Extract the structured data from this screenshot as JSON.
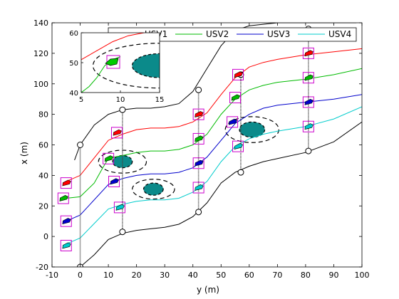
{
  "chart_data": {
    "type": "line",
    "xlabel": "y (m)",
    "ylabel": "x (m)",
    "xlim": [
      -10,
      100
    ],
    "ylim": [
      -20,
      140
    ],
    "xticks": [
      -10,
      0,
      10,
      20,
      30,
      40,
      50,
      60,
      70,
      80,
      90,
      100
    ],
    "yticks": [
      -20,
      0,
      20,
      40,
      60,
      80,
      100,
      120,
      140
    ],
    "grid": false,
    "legend_position": "top",
    "series": [
      {
        "name": "USV1",
        "color": "#ff0000",
        "x": [
          -5,
          0,
          10,
          15,
          20,
          25,
          30,
          35,
          40,
          45,
          50,
          55,
          60,
          65,
          70,
          80,
          90,
          100
        ],
        "y": [
          36,
          40,
          63,
          67,
          70,
          71,
          71,
          72,
          75,
          81,
          93,
          104,
          111,
          114,
          116,
          119,
          121,
          123
        ]
      },
      {
        "name": "USV2",
        "color": "#00bb00",
        "x": [
          -5,
          0,
          5,
          8,
          10,
          12,
          15,
          20,
          25,
          30,
          35,
          40,
          45,
          50,
          55,
          60,
          65,
          70,
          80,
          90,
          100
        ],
        "y": [
          25,
          26,
          35,
          45,
          51,
          52,
          53,
          55,
          56,
          56,
          57,
          60,
          67,
          80,
          90,
          96,
          99,
          101,
          103,
          106,
          110
        ]
      },
      {
        "name": "USV3",
        "color": "#0000cc",
        "x": [
          -5,
          0,
          10,
          15,
          20,
          25,
          30,
          35,
          40,
          45,
          50,
          55,
          60,
          65,
          70,
          80,
          90,
          100
        ],
        "y": [
          10,
          14,
          34,
          38,
          40,
          41,
          41,
          42,
          45,
          52,
          63,
          74,
          80,
          84,
          86,
          88,
          90,
          93
        ]
      },
      {
        "name": "USV4",
        "color": "#00cccc",
        "x": [
          -5,
          0,
          10,
          15,
          20,
          25,
          30,
          35,
          40,
          45,
          50,
          55,
          60,
          65,
          70,
          80,
          90,
          100
        ],
        "y": [
          -5,
          -1,
          18,
          21,
          23,
          24,
          24,
          25,
          29,
          36,
          49,
          59,
          64,
          67,
          69,
          72,
          77,
          85
        ]
      },
      {
        "name": "",
        "color": "#000000",
        "x": [
          -2,
          0,
          5,
          10,
          15,
          20,
          25,
          30,
          35,
          40,
          45,
          50,
          55,
          60,
          70,
          80,
          90,
          98
        ],
        "y": [
          50,
          60,
          73,
          80,
          83,
          84,
          84,
          85,
          87,
          95,
          110,
          125,
          135,
          138,
          140,
          140,
          140,
          140
        ]
      },
      {
        "name": "",
        "color": "#000000",
        "x": [
          0,
          5,
          10,
          15,
          20,
          25,
          30,
          35,
          40,
          45,
          50,
          55,
          60,
          65,
          70,
          80,
          90,
          100
        ],
        "y": [
          -20,
          -12,
          -2,
          2,
          4,
          5,
          6,
          8,
          13,
          22,
          35,
          42,
          46,
          49,
          51,
          55,
          62,
          75
        ]
      }
    ],
    "obstacles": [
      {
        "center": [
          15,
          49
        ],
        "rx": 3.5,
        "ry": 4,
        "safety_rx": 8.5,
        "safety_ry": 7.5
      },
      {
        "center": [
          26,
          31
        ],
        "rx": 3.5,
        "ry": 4,
        "safety_rx": 7.5,
        "safety_ry": 6.5
      },
      {
        "center": [
          61,
          70
        ],
        "rx": 4.5,
        "ry": 5,
        "safety_rx": 9.5,
        "safety_ry": 8.5
      }
    ],
    "snapshots": [
      {
        "y": 0,
        "top_x": 60,
        "bottom_x": -20,
        "boats": [
          [
            -5,
            35,
            "#ff0000"
          ],
          [
            -6,
            25,
            "#00bb00"
          ],
          [
            -5,
            10,
            "#0000cc"
          ],
          [
            -5,
            -6,
            "#00cccc"
          ]
        ]
      },
      {
        "y": 15,
        "top_x": 83,
        "bottom_x": 3,
        "boats": [
          [
            13,
            68,
            "#ff0000"
          ],
          [
            10,
            51,
            "#00bb00"
          ],
          [
            12,
            36,
            "#0000cc"
          ],
          [
            14,
            19,
            "#00cccc"
          ]
        ]
      },
      {
        "y": 42,
        "top_x": 96,
        "bottom_x": 16,
        "boats": [
          [
            42,
            80,
            "#ff0000"
          ],
          [
            42,
            64,
            "#00bb00"
          ],
          [
            42,
            48,
            "#0000cc"
          ],
          [
            42,
            32,
            "#00cccc"
          ]
        ]
      },
      {
        "y": 57,
        "top_x": 106,
        "bottom_x": 42,
        "boats": [
          [
            56,
            106,
            "#ff0000"
          ],
          [
            55,
            91,
            "#00bb00"
          ],
          [
            54,
            75,
            "#0000cc"
          ],
          [
            56,
            59,
            "#00cccc"
          ]
        ]
      },
      {
        "y": 81,
        "top_x": 136,
        "bottom_x": 56,
        "boats": [
          [
            81,
            120,
            "#ff0000"
          ],
          [
            81,
            104,
            "#00bb00"
          ],
          [
            81,
            88,
            "#0000cc"
          ],
          [
            81,
            72,
            "#00cccc"
          ]
        ]
      }
    ],
    "inset": {
      "xlim": [
        5,
        15
      ],
      "ylim": [
        40,
        60
      ],
      "xticks": [
        5,
        10,
        15
      ],
      "yticks": [
        40,
        50,
        60
      ],
      "red_curve": {
        "x": [
          5,
          7,
          9,
          11,
          13,
          15
        ],
        "y": [
          51,
          54,
          57,
          59,
          60,
          61
        ]
      },
      "green_curve": {
        "x": [
          5,
          6,
          7,
          8,
          9,
          10
        ],
        "y": [
          40,
          42,
          45,
          49,
          51,
          52
        ]
      },
      "boat": [
        9,
        50
      ],
      "obstacle": {
        "center": [
          15,
          49
        ],
        "rx": 3.5,
        "ry": 4,
        "safety_rx": 8.5,
        "safety_ry": 7.5
      }
    }
  }
}
